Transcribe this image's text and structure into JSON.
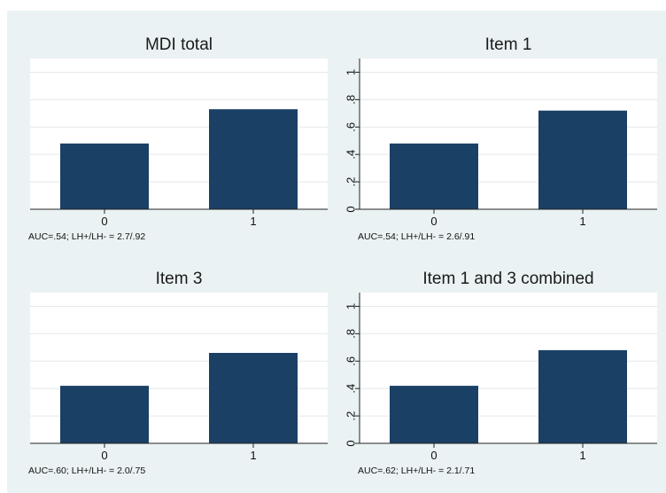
{
  "chart_data": [
    {
      "type": "bar",
      "title": "MDI total",
      "categories": [
        "0",
        "1"
      ],
      "values": [
        0.48,
        0.73
      ],
      "ylim": [
        0,
        1.1
      ],
      "y_ticks": [
        0,
        0.2,
        0.4,
        0.6,
        0.8,
        1
      ],
      "y_tick_labels": [],
      "note": "AUC=.54; LH+/LH- = 2.7/.92",
      "bar_color": "#1a4066",
      "grid": true
    },
    {
      "type": "bar",
      "title": "Item 1",
      "categories": [
        "0",
        "1"
      ],
      "values": [
        0.48,
        0.72
      ],
      "ylim": [
        0,
        1.1
      ],
      "y_ticks": [
        0,
        0.2,
        0.4,
        0.6,
        0.8,
        1
      ],
      "y_tick_labels": [
        "0",
        ".2",
        ".4",
        ".6",
        ".8",
        "1"
      ],
      "note": "AUC=.54; LH+/LH- = 2.6/.91",
      "bar_color": "#1a4066",
      "grid": true
    },
    {
      "type": "bar",
      "title": "Item 3",
      "categories": [
        "0",
        "1"
      ],
      "values": [
        0.42,
        0.66
      ],
      "ylim": [
        0,
        1.1
      ],
      "y_ticks": [
        0,
        0.2,
        0.4,
        0.6,
        0.8,
        1
      ],
      "y_tick_labels": [],
      "note": "AUC=.60; LH+/LH- = 2.0/.75",
      "bar_color": "#1a4066",
      "grid": true
    },
    {
      "type": "bar",
      "title": "Item 1 and 3 combined",
      "categories": [
        "0",
        "1"
      ],
      "values": [
        0.42,
        0.68
      ],
      "ylim": [
        0,
        1.1
      ],
      "y_ticks": [
        0,
        0.2,
        0.4,
        0.6,
        0.8,
        1
      ],
      "y_tick_labels": [
        "0",
        ".2",
        ".4",
        ".6",
        ".8",
        "1"
      ],
      "note": "AUC=.62; LH+/LH- = 2.1/.71",
      "bar_color": "#1a4066",
      "grid": true
    }
  ],
  "colors": {
    "figure_background": "#eaf2f3",
    "plot_background": "#ffffff",
    "bar": "#1a4066",
    "grid": "#e3e8ea"
  }
}
